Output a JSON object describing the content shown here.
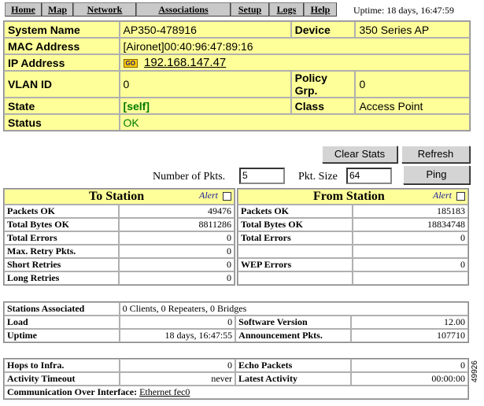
{
  "nav": {
    "items": [
      {
        "label": "Home"
      },
      {
        "label": "Map"
      },
      {
        "label": "Network"
      },
      {
        "label": "Associations"
      },
      {
        "label": "Setup"
      },
      {
        "label": "Logs"
      },
      {
        "label": "Help"
      }
    ],
    "uptime": "Uptime: 18 days, 16:47:59"
  },
  "system": {
    "system_name_label": "System Name",
    "system_name": "AP350-478916",
    "device_label": "Device",
    "device": "350 Series AP",
    "mac_label": "MAC Address",
    "mac": "[Aironet]00:40:96:47:89:16",
    "ip_label": "IP Address",
    "go_icon": "GO",
    "ip": "192.168.147.47",
    "vlan_label": "VLAN ID",
    "vlan": "0",
    "policy_label": "Policy Grp.",
    "policy": "0",
    "state_label": "State",
    "state": "[self]",
    "class_label": "Class",
    "class": "Access Point",
    "status_label": "Status",
    "status": "OK"
  },
  "controls": {
    "clear_stats": "Clear Stats",
    "refresh": "Refresh",
    "ping": "Ping",
    "num_pkts_label": "Number of Pkts.",
    "num_pkts": "5",
    "pkt_size_label": "Pkt. Size",
    "pkt_size": "64"
  },
  "to_station": {
    "title": "To Station",
    "alert": "Alert",
    "rows": [
      {
        "label": "Packets OK",
        "value": "49476"
      },
      {
        "label": "Total Bytes OK",
        "value": "8811286"
      },
      {
        "label": "Total Errors",
        "value": "0"
      },
      {
        "label": "Max. Retry Pkts.",
        "value": "0"
      },
      {
        "label": "Short Retries",
        "value": "0"
      },
      {
        "label": "Long Retries",
        "value": "0"
      }
    ]
  },
  "from_station": {
    "title": "From Station",
    "alert": "Alert",
    "rows": [
      {
        "label": "Packets OK",
        "value": "185183"
      },
      {
        "label": "Total Bytes OK",
        "value": "18834748"
      },
      {
        "label": "Total Errors",
        "value": "0"
      },
      {
        "label": "",
        "value": ""
      },
      {
        "label": "WEP Errors",
        "value": "0"
      },
      {
        "label": "",
        "value": ""
      }
    ]
  },
  "info": {
    "stations_label": "Stations Associated",
    "stations": "0 Clients, 0 Repeaters, 0 Bridges",
    "load_label": "Load",
    "load": "0",
    "software_label": "Software Version",
    "software": "12.00",
    "uptime_label": "Uptime",
    "uptime": "18 days, 16:47:55",
    "announce_label": "Announcement Pkts.",
    "announce": "107710"
  },
  "link": {
    "hops_label": "Hops to Infra.",
    "hops": "0",
    "echo_label": "Echo Packets",
    "echo": "0",
    "timeout_label": "Activity Timeout",
    "timeout": "never",
    "latest_label": "Latest Activity",
    "latest": "00:00:00",
    "comm_label": "Communication Over Interface:",
    "comm_link": "Ethernet fec0"
  },
  "figure_number": "49926"
}
